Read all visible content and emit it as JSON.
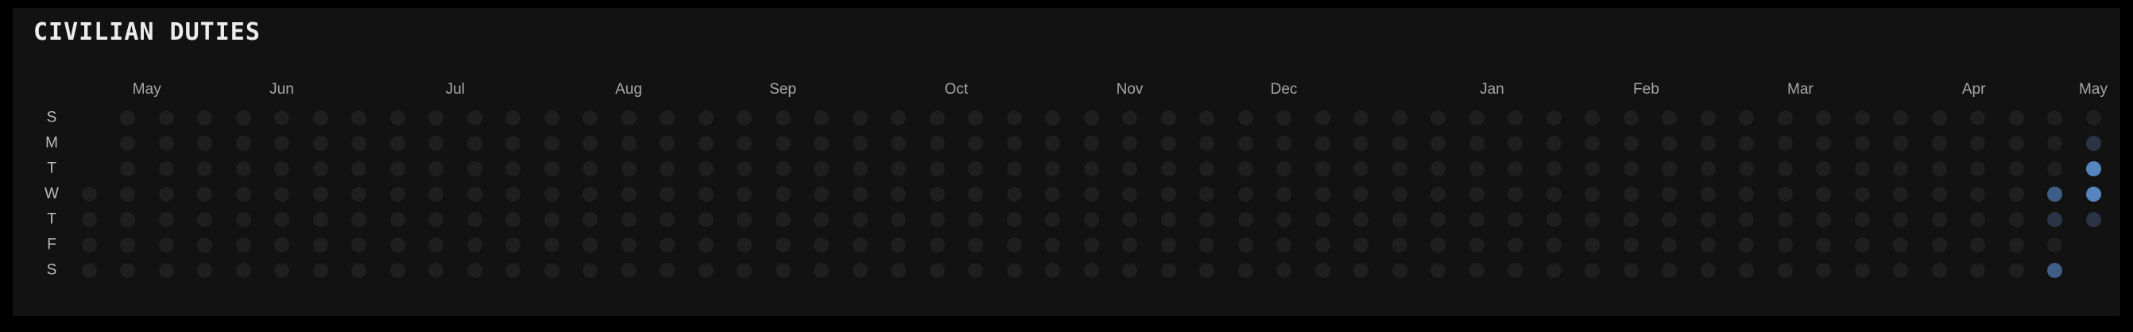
{
  "title": "CIVILIAN DUTIES",
  "day_labels": [
    "S",
    "M",
    "T",
    "W",
    "T",
    "F",
    "S"
  ],
  "months": [
    {
      "label": "May",
      "week": 1.5
    },
    {
      "label": "Jun",
      "week": 5
    },
    {
      "label": "Jul",
      "week": 9.5
    },
    {
      "label": "Aug",
      "week": 14
    },
    {
      "label": "Sep",
      "week": 18
    },
    {
      "label": "Oct",
      "week": 22.5
    },
    {
      "label": "Nov",
      "week": 27
    },
    {
      "label": "Dec",
      "week": 31
    },
    {
      "label": "Jan",
      "week": 36.4
    },
    {
      "label": "Feb",
      "week": 40.4
    },
    {
      "label": "Mar",
      "week": 44.4
    },
    {
      "label": "Apr",
      "week": 48.9
    },
    {
      "label": "May",
      "week": 52
    }
  ],
  "weeks": 53,
  "first_week_start_day": 3,
  "last_week_end_day": 4,
  "colors": {
    "empty": "#1f1f1f",
    "level1": "#2a3444",
    "level2": "#3f5e86",
    "level3": "#5586be"
  },
  "levels": [
    {
      "week": 51,
      "day": 3,
      "level": 2
    },
    {
      "week": 51,
      "day": 4,
      "level": 1
    },
    {
      "week": 51,
      "day": 6,
      "level": 2
    },
    {
      "week": 52,
      "day": 1,
      "level": 1
    },
    {
      "week": 52,
      "day": 2,
      "level": 3
    },
    {
      "week": 52,
      "day": 3,
      "level": 3
    },
    {
      "week": 52,
      "day": 4,
      "level": 1
    }
  ]
}
